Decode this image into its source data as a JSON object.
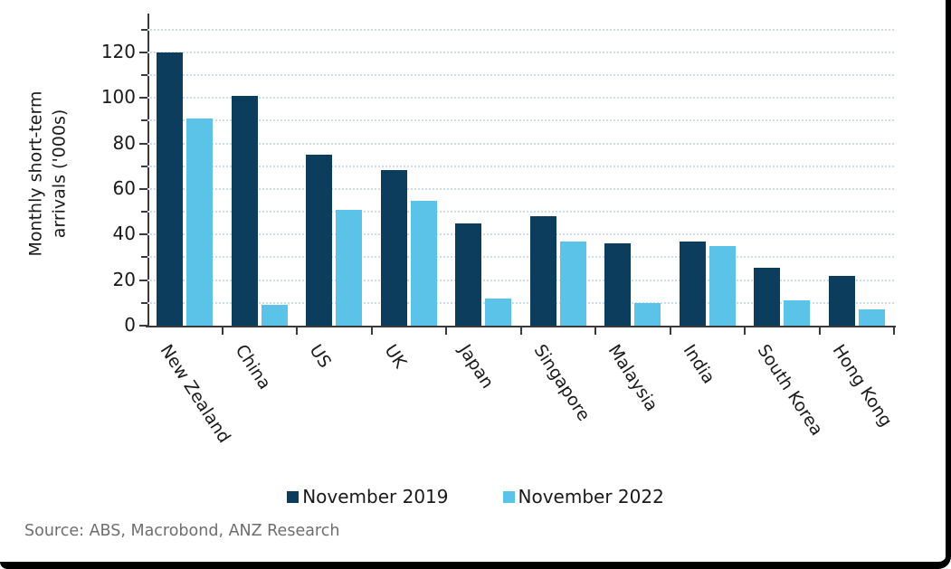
{
  "chart_data": {
    "type": "bar",
    "categories": [
      "New Zealand",
      "China",
      "US",
      "UK",
      "Japan",
      "Singapore",
      "Malaysia",
      "India",
      "South Korea",
      "Hong Kong"
    ],
    "series": [
      {
        "name": "November 2019",
        "color": "#0d3d5c",
        "values": [
          120,
          101,
          75,
          68.5,
          45,
          48,
          36,
          37,
          25.5,
          22
        ]
      },
      {
        "name": "November 2022",
        "color": "#5bc3e8",
        "values": [
          91,
          9,
          51,
          55,
          12,
          37,
          10,
          35,
          11,
          7
        ]
      }
    ],
    "ylabel_lines": [
      "Monthly short-term",
      "arrivals ('000s)"
    ],
    "ylim": [
      0,
      137
    ],
    "yticks": [
      0,
      20,
      40,
      60,
      80,
      100,
      120
    ],
    "minor_tick_interval": 10,
    "grid_interval": 10,
    "grid_max": 130,
    "grid_style": "dotted",
    "grid_color": "#c9dee8",
    "axis_color": "#3a3a3a",
    "legend_position": "bottom"
  },
  "source_note": "Source: ABS, Macrobond, ANZ Research",
  "frame": {
    "border_color": "#000000",
    "background": "#ffffff"
  }
}
